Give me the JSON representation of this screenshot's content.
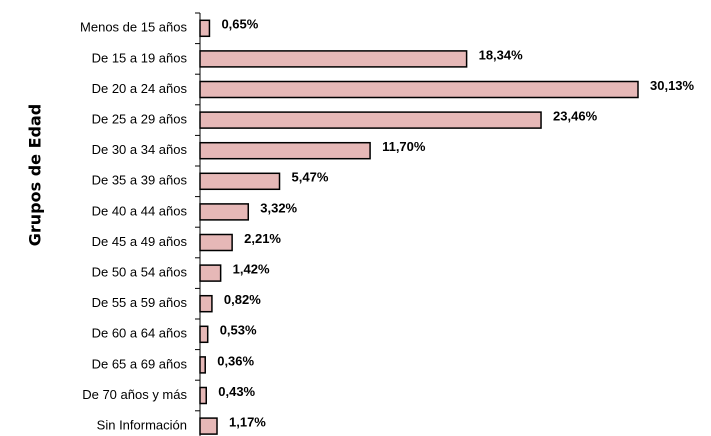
{
  "chart_data": {
    "type": "bar",
    "orientation": "horizontal",
    "ylabel": "Grupos de Edad",
    "categories": [
      "Menos de 15 años",
      "De 15 a 19 años",
      "De 20 a 24 años",
      "De 25 a 29 años",
      "De 30 a 34 años",
      "De 35 a 39 años",
      "De 40 a 44 años",
      "De 45 a 49 años",
      "De 50 a 54 años",
      "De 55 a 59 años",
      "De 60 a 64 años",
      "De 65 a 69 años",
      "De 70 años y más",
      "Sin Información"
    ],
    "values": [
      0.65,
      18.34,
      30.13,
      23.46,
      11.7,
      5.47,
      3.32,
      2.21,
      1.42,
      0.82,
      0.53,
      0.36,
      0.43,
      1.17
    ],
    "value_labels": [
      "0,65%",
      "18,34%",
      "30,13%",
      "23,46%",
      "11,70%",
      "5,47%",
      "3,32%",
      "2,21%",
      "1,42%",
      "0,82%",
      "0,53%",
      "0,36%",
      "0,43%",
      "1,17%"
    ],
    "color": "#e6b8b7"
  }
}
